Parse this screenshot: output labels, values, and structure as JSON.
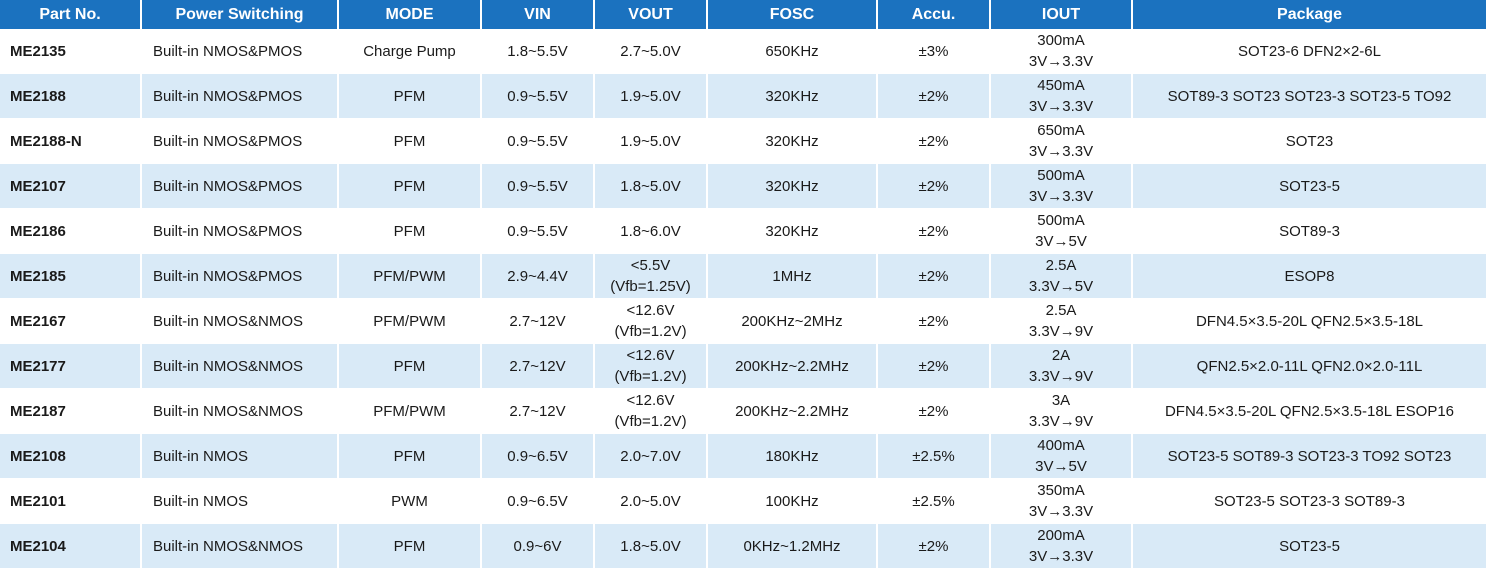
{
  "header": {
    "part_no": "Part No.",
    "power_switching": "Power Switching",
    "mode": "MODE",
    "vin": "VIN",
    "vout": "VOUT",
    "fosc": "FOSC",
    "accu": "Accu.",
    "iout": "IOUT",
    "package": "Package"
  },
  "rows": [
    {
      "part": "ME2135",
      "switching": "Built-in NMOS&PMOS",
      "mode": "Charge Pump",
      "vin": "1.8~5.5V",
      "vout_1": "2.7~5.0V",
      "vout_2": "",
      "fosc": "650KHz",
      "accu": "±3%",
      "iout_1": "300mA",
      "iout_2": "3V→3.3V",
      "package": "SOT23-6 DFN2×2-6L"
    },
    {
      "part": "ME2188",
      "switching": "Built-in NMOS&PMOS",
      "mode": "PFM",
      "vin": "0.9~5.5V",
      "vout_1": "1.9~5.0V",
      "vout_2": "",
      "fosc": "320KHz",
      "accu": "±2%",
      "iout_1": "450mA",
      "iout_2": "3V→3.3V",
      "package": "SOT89-3 SOT23 SOT23-3 SOT23-5 TO92"
    },
    {
      "part": "ME2188-N",
      "switching": "Built-in NMOS&PMOS",
      "mode": "PFM",
      "vin": "0.9~5.5V",
      "vout_1": "1.9~5.0V",
      "vout_2": "",
      "fosc": "320KHz",
      "accu": "±2%",
      "iout_1": "650mA",
      "iout_2": "3V→3.3V",
      "package": "SOT23"
    },
    {
      "part": "ME2107",
      "switching": "Built-in NMOS&PMOS",
      "mode": "PFM",
      "vin": "0.9~5.5V",
      "vout_1": "1.8~5.0V",
      "vout_2": "",
      "fosc": "320KHz",
      "accu": "±2%",
      "iout_1": "500mA",
      "iout_2": "3V→3.3V",
      "package": "SOT23-5"
    },
    {
      "part": "ME2186",
      "switching": "Built-in NMOS&PMOS",
      "mode": "PFM",
      "vin": "0.9~5.5V",
      "vout_1": "1.8~6.0V",
      "vout_2": "",
      "fosc": "320KHz",
      "accu": "±2%",
      "iout_1": "500mA",
      "iout_2": "3V→5V",
      "package": "SOT89-3"
    },
    {
      "part": "ME2185",
      "switching": "Built-in NMOS&PMOS",
      "mode": "PFM/PWM",
      "vin": "2.9~4.4V",
      "vout_1": "<5.5V",
      "vout_2": "(Vfb=1.25V)",
      "fosc": "1MHz",
      "accu": "±2%",
      "iout_1": "2.5A",
      "iout_2": "3.3V→5V",
      "package": "ESOP8"
    },
    {
      "part": "ME2167",
      "switching": "Built-in NMOS&NMOS",
      "mode": "PFM/PWM",
      "vin": "2.7~12V",
      "vout_1": "<12.6V",
      "vout_2": "(Vfb=1.2V)",
      "fosc": "200KHz~2MHz",
      "accu": "±2%",
      "iout_1": "2.5A",
      "iout_2": "3.3V→9V",
      "package": "DFN4.5×3.5-20L QFN2.5×3.5-18L"
    },
    {
      "part": "ME2177",
      "switching": "Built-in NMOS&NMOS",
      "mode": "PFM",
      "vin": "2.7~12V",
      "vout_1": "<12.6V",
      "vout_2": "(Vfb=1.2V)",
      "fosc": "200KHz~2.2MHz",
      "accu": "±2%",
      "iout_1": "2A",
      "iout_2": "3.3V→9V",
      "package": "QFN2.5×2.0-11L QFN2.0×2.0-11L"
    },
    {
      "part": "ME2187",
      "switching": "Built-in NMOS&NMOS",
      "mode": "PFM/PWM",
      "vin": "2.7~12V",
      "vout_1": "<12.6V",
      "vout_2": "(Vfb=1.2V)",
      "fosc": "200KHz~2.2MHz",
      "accu": "±2%",
      "iout_1": "3A",
      "iout_2": "3.3V→9V",
      "package": "DFN4.5×3.5-20L QFN2.5×3.5-18L ESOP16"
    },
    {
      "part": "ME2108",
      "switching": "Built-in NMOS",
      "mode": "PFM",
      "vin": "0.9~6.5V",
      "vout_1": "2.0~7.0V",
      "vout_2": "",
      "fosc": "180KHz",
      "accu": "±2.5%",
      "iout_1": "400mA",
      "iout_2": "3V→5V",
      "package": "SOT23-5 SOT89-3 SOT23-3 TO92 SOT23"
    },
    {
      "part": "ME2101",
      "switching": "Built-in NMOS",
      "mode": "PWM",
      "vin": "0.9~6.5V",
      "vout_1": "2.0~5.0V",
      "vout_2": "",
      "fosc": "100KHz",
      "accu": "±2.5%",
      "iout_1": "350mA",
      "iout_2": "3V→3.3V",
      "package": "SOT23-5 SOT23-3 SOT89-3"
    },
    {
      "part": "ME2104",
      "switching": "Built-in NMOS&NMOS",
      "mode": "PFM",
      "vin": "0.9~6V",
      "vout_1": "1.8~5.0V",
      "vout_2": "",
      "fosc": "0KHz~1.2MHz",
      "accu": "±2%",
      "iout_1": "200mA",
      "iout_2": "3V→3.3V",
      "package": "SOT23-5"
    }
  ]
}
